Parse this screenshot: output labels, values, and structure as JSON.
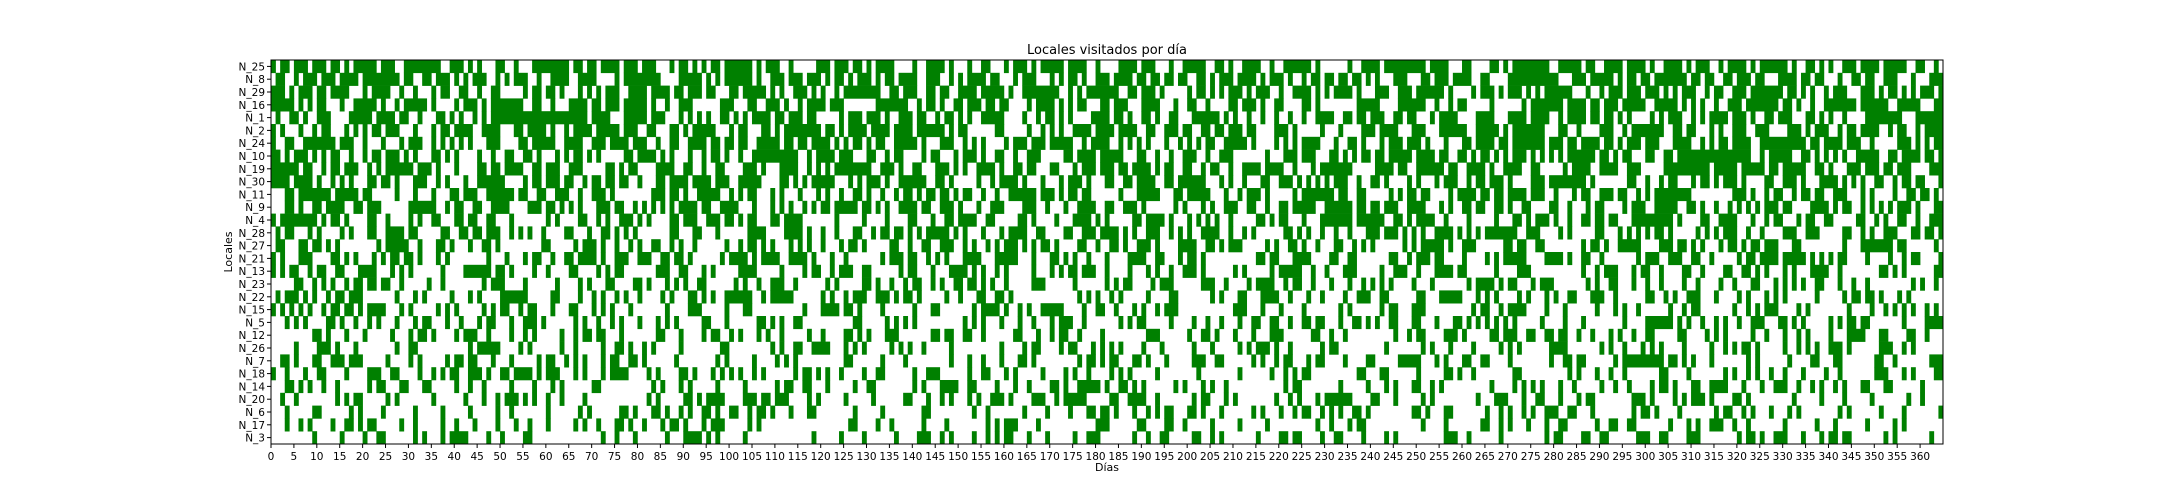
{
  "chart_data": {
    "type": "heatmap",
    "title": "Locales visitados por día",
    "xlabel": "Días",
    "ylabel": "Locales",
    "locales": [
      "N_25",
      "N_8",
      "N_29",
      "N_16",
      "N_1",
      "N_2",
      "N_24",
      "N_10",
      "N_19",
      "N_30",
      "N_11",
      "N_9",
      "N_4",
      "N_28",
      "N_27",
      "N_21",
      "N_13",
      "N_23",
      "N_22",
      "N_15",
      "N_5",
      "N_12",
      "N_26",
      "N_7",
      "N_18",
      "N_14",
      "N_20",
      "N_6",
      "N_17",
      "N_3"
    ],
    "x_ticks": [
      0,
      5,
      10,
      15,
      20,
      25,
      30,
      35,
      40,
      45,
      50,
      55,
      60,
      65,
      70,
      75,
      80,
      85,
      90,
      95,
      100,
      105,
      110,
      115,
      120,
      125,
      130,
      135,
      140,
      145,
      150,
      155,
      160,
      165,
      170,
      175,
      180,
      185,
      190,
      195,
      200,
      205,
      210,
      215,
      220,
      225,
      230,
      235,
      240,
      245,
      250,
      255,
      260,
      265,
      270,
      275,
      280,
      285,
      290,
      295,
      300,
      305,
      310,
      315,
      320,
      325,
      330,
      335,
      340,
      345,
      350,
      355,
      360
    ],
    "xlim": [
      0,
      365
    ],
    "num_days": 365,
    "visit_probability_by_locale": [
      0.62,
      0.6,
      0.6,
      0.58,
      0.58,
      0.57,
      0.56,
      0.55,
      0.55,
      0.54,
      0.53,
      0.5,
      0.48,
      0.46,
      0.45,
      0.42,
      0.4,
      0.38,
      0.37,
      0.36,
      0.35,
      0.35,
      0.34,
      0.33,
      0.32,
      0.32,
      0.3,
      0.28,
      0.27,
      0.25
    ],
    "visited_color": "#008000",
    "not_visited_color": "#ffffff",
    "legend": "none",
    "grid": false
  }
}
